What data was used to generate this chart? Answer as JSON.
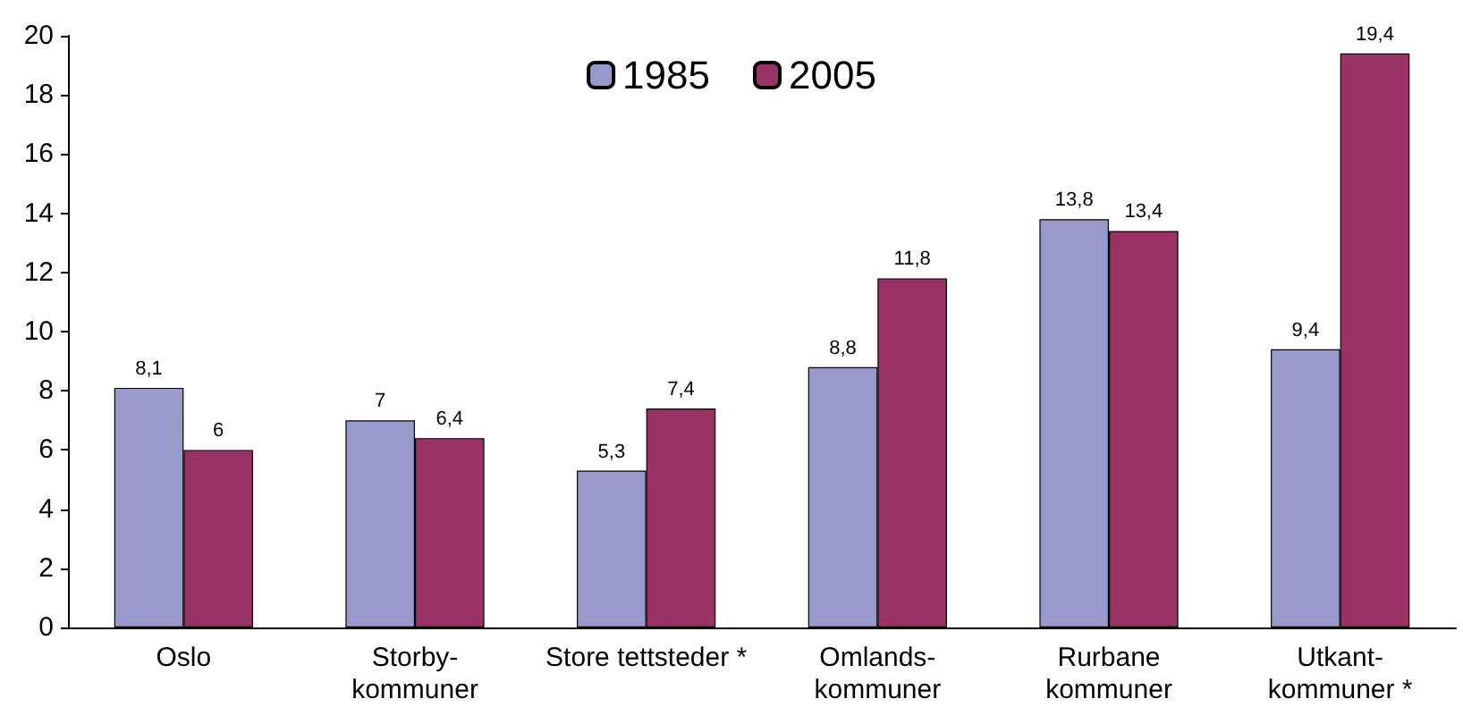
{
  "chart_data": {
    "type": "bar",
    "categories": [
      "Oslo",
      "Storby-\nkommuner",
      "Store tettsteder *",
      "Omlands-\nkommuner",
      "Rurbane\nkommuner",
      "Utkant-\nkommuner *"
    ],
    "series": [
      {
        "name": "1985",
        "color": "#9999cc",
        "values": [
          8.1,
          7,
          5.3,
          8.8,
          13.8,
          9.4
        ],
        "value_labels": [
          "8,1",
          "7",
          "5,3",
          "8,8",
          "13,8",
          "9,4"
        ]
      },
      {
        "name": "2005",
        "color": "#993366",
        "values": [
          6,
          6.4,
          7.4,
          11.8,
          13.4,
          19.4
        ],
        "value_labels": [
          "6",
          "6,4",
          "7,4",
          "11,8",
          "13,4",
          "19,4"
        ]
      }
    ],
    "ylim": [
      0,
      20
    ],
    "yticks": [
      0,
      2,
      4,
      6,
      8,
      10,
      12,
      14,
      16,
      18,
      20
    ],
    "grid": false,
    "legend": "top"
  }
}
